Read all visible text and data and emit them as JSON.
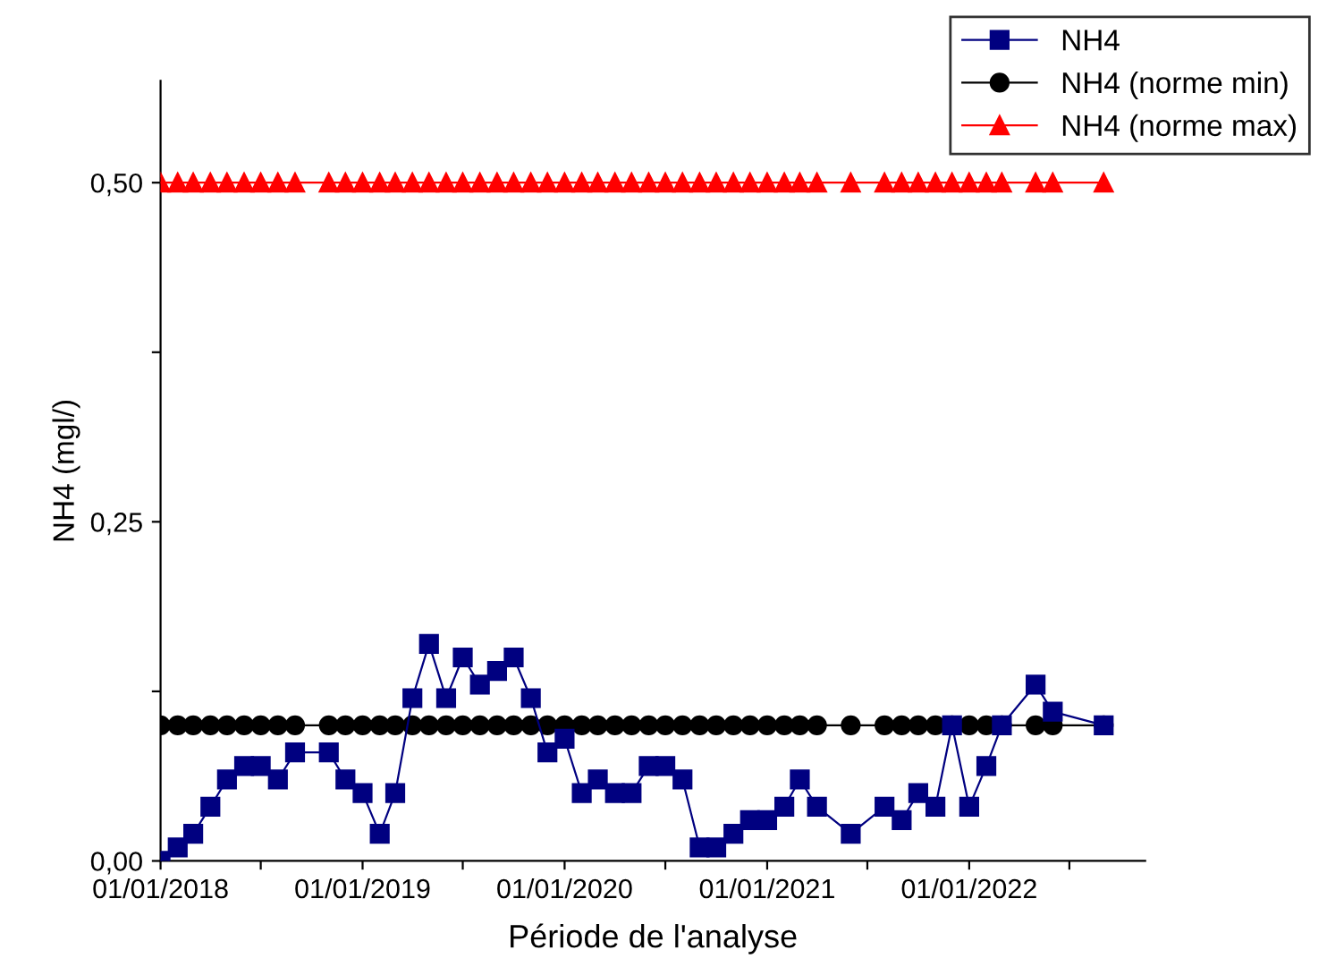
{
  "chart_data": {
    "type": "line",
    "xlabel": "Période de l'analyse",
    "ylabel": "NH4 (mgl/)",
    "x": [
      "2018-01",
      "2018-02",
      "2018-03",
      "2018-04",
      "2018-05",
      "2018-06",
      "2018-07",
      "2018-08",
      "2018-09",
      "2018-11",
      "2018-12",
      "2019-01",
      "2019-02",
      "2019-03",
      "2019-04",
      "2019-05",
      "2019-06",
      "2019-07",
      "2019-08",
      "2019-09",
      "2019-10",
      "2019-11",
      "2019-12",
      "2020-01",
      "2020-02",
      "2020-03",
      "2020-04",
      "2020-05",
      "2020-06",
      "2020-07",
      "2020-08",
      "2020-09",
      "2020-10",
      "2020-11",
      "2020-12",
      "2021-01",
      "2021-02",
      "2021-03",
      "2021-04",
      "2021-06",
      "2021-08",
      "2021-09",
      "2021-10",
      "2021-11",
      "2021-12",
      "2022-01",
      "2022-02",
      "2022-03",
      "2022-05",
      "2022-06",
      "2022-09"
    ],
    "series": [
      {
        "name": "NH4",
        "color": "#000080",
        "marker": "square",
        "values": [
          0,
          0.01,
          0.02,
          0.04,
          0.06,
          0.07,
          0.07,
          0.06,
          0.08,
          0.08,
          0.06,
          0.05,
          0.02,
          0.05,
          0.12,
          0.16,
          0.12,
          0.15,
          0.13,
          0.14,
          0.15,
          0.12,
          0.08,
          0.09,
          0.05,
          0.06,
          0.05,
          0.05,
          0.07,
          0.07,
          0.06,
          0.01,
          0.01,
          0.02,
          0.03,
          0.03,
          0.04,
          0.06,
          0.04,
          0.02,
          0.04,
          0.03,
          0.05,
          0.04,
          0.1,
          0.04,
          0.07,
          0.1,
          0.13,
          0.11,
          0.1
        ]
      },
      {
        "name": "NH4 (norme min)",
        "color": "#000000",
        "marker": "circle",
        "values": [
          0.1,
          0.1,
          0.1,
          0.1,
          0.1,
          0.1,
          0.1,
          0.1,
          0.1,
          0.1,
          0.1,
          0.1,
          0.1,
          0.1,
          0.1,
          0.1,
          0.1,
          0.1,
          0.1,
          0.1,
          0.1,
          0.1,
          0.1,
          0.1,
          0.1,
          0.1,
          0.1,
          0.1,
          0.1,
          0.1,
          0.1,
          0.1,
          0.1,
          0.1,
          0.1,
          0.1,
          0.1,
          0.1,
          0.1,
          0.1,
          0.1,
          0.1,
          0.1,
          0.1,
          0.1,
          0.1,
          0.1,
          0.1,
          0.1,
          0.1,
          0.1
        ]
      },
      {
        "name": "NH4 (norme max)",
        "color": "#ff0000",
        "marker": "triangle",
        "values": [
          0.5,
          0.5,
          0.5,
          0.5,
          0.5,
          0.5,
          0.5,
          0.5,
          0.5,
          0.5,
          0.5,
          0.5,
          0.5,
          0.5,
          0.5,
          0.5,
          0.5,
          0.5,
          0.5,
          0.5,
          0.5,
          0.5,
          0.5,
          0.5,
          0.5,
          0.5,
          0.5,
          0.5,
          0.5,
          0.5,
          0.5,
          0.5,
          0.5,
          0.5,
          0.5,
          0.5,
          0.5,
          0.5,
          0.5,
          0.5,
          0.5,
          0.5,
          0.5,
          0.5,
          0.5,
          0.5,
          0.5,
          0.5,
          0.5,
          0.5,
          0.5
        ]
      }
    ],
    "xlim": [
      "2018-01-01",
      "2022-11-15"
    ],
    "xticks": [
      {
        "value": "2018-01-01",
        "label": "01/01/2018"
      },
      {
        "value": "2018-07-01",
        "label": null
      },
      {
        "value": "2019-01-01",
        "label": "01/01/2019"
      },
      {
        "value": "2019-07-01",
        "label": null
      },
      {
        "value": "2020-01-01",
        "label": "01/01/2020"
      },
      {
        "value": "2020-07-01",
        "label": null
      },
      {
        "value": "2021-01-01",
        "label": "01/01/2021"
      },
      {
        "value": "2021-07-01",
        "label": null
      },
      {
        "value": "2022-01-01",
        "label": "01/01/2022"
      },
      {
        "value": "2022-07-01",
        "label": null
      }
    ],
    "ylim": [
      0,
      0.575
    ],
    "yticks": [
      {
        "value": 0,
        "label": "0,00"
      },
      {
        "value": 0.125,
        "label": null
      },
      {
        "value": 0.25,
        "label": "0,25"
      },
      {
        "value": 0.375,
        "label": null
      },
      {
        "value": 0.5,
        "label": "0,50"
      }
    ],
    "grid": false,
    "legend": "top right",
    "line_style": "solid"
  }
}
